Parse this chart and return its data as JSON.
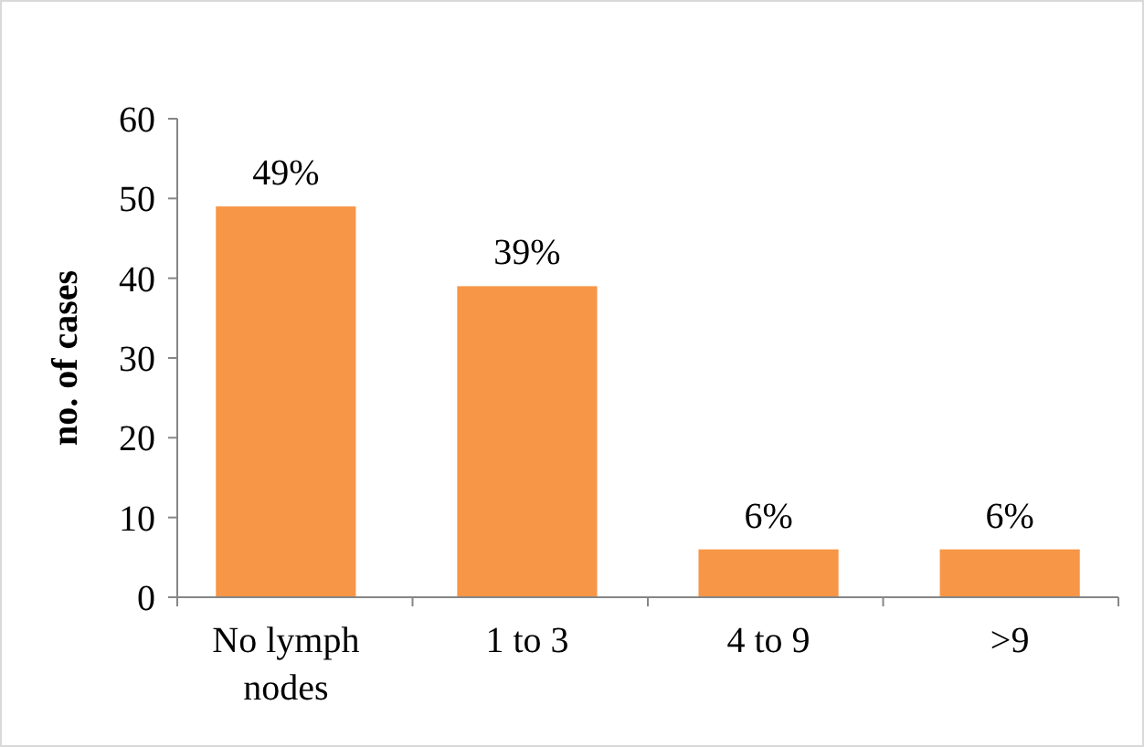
{
  "chart_data": {
    "type": "bar",
    "ylabel": "no. of cases",
    "categories": [
      "No lymph nodes",
      "1 to 3",
      "4 to 9",
      ">9"
    ],
    "values": [
      49,
      39,
      6,
      6
    ],
    "value_labels": [
      "49%",
      "39%",
      "6%",
      "6%"
    ],
    "color": "#f79646",
    "ylim": [
      0,
      60
    ],
    "yticks": [
      0,
      10,
      20,
      30,
      40,
      50,
      60
    ],
    "grid": false
  }
}
